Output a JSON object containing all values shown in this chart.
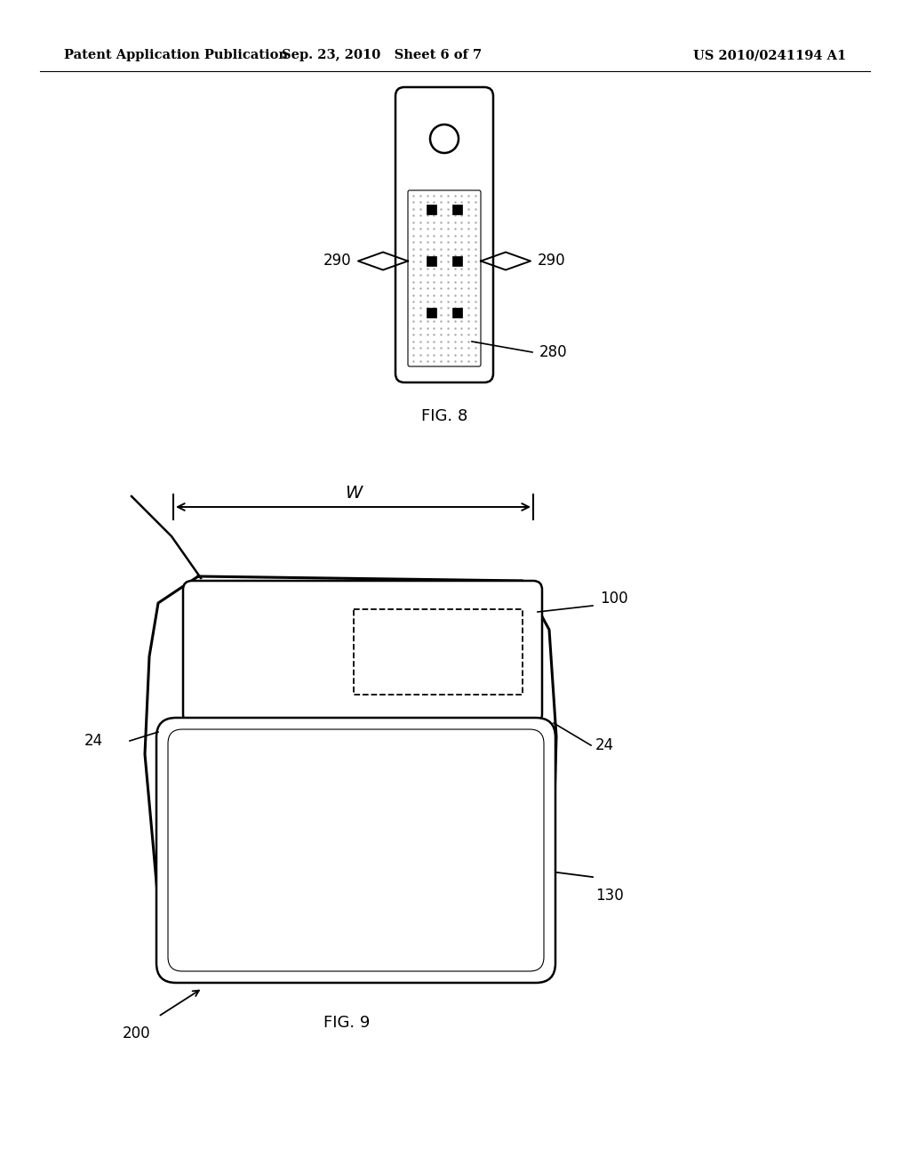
{
  "bg_color": "#ffffff",
  "header_left": "Patent Application Publication",
  "header_center": "Sep. 23, 2010   Sheet 6 of 7",
  "header_right": "US 2010/0241194 A1",
  "fig8_label": "FIG. 8",
  "fig9_label": "FIG. 9",
  "label_290_left": "290",
  "label_290_right": "290",
  "label_280": "280",
  "label_100": "100",
  "label_24_left": "24",
  "label_24_right": "24",
  "label_130": "130",
  "label_200": "200",
  "label_W": "W"
}
